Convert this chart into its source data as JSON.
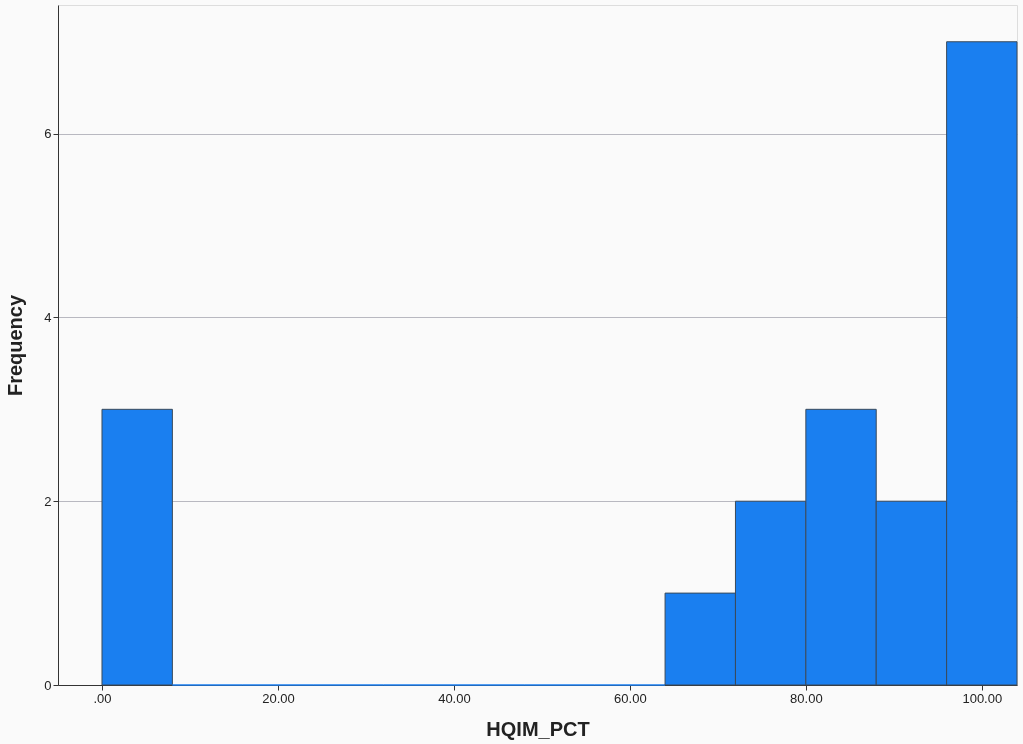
{
  "chart_data": {
    "type": "histogram",
    "xlabel": "HQIM_PCT",
    "ylabel": "Frequency",
    "bins": [
      0,
      8,
      16,
      24,
      32,
      40,
      48,
      56,
      64,
      72,
      80,
      88,
      96,
      104
    ],
    "values": [
      3,
      0,
      0,
      0,
      0,
      0,
      0,
      0,
      1,
      2,
      3,
      2,
      7
    ],
    "color": "#1a7ff0",
    "xlim": [
      -5,
      104
    ],
    "ylim": [
      0,
      7.4
    ],
    "xticks": [
      {
        "value": 0,
        "label": ".00"
      },
      {
        "value": 20,
        "label": "20.00"
      },
      {
        "value": 40,
        "label": "40.00"
      },
      {
        "value": 60,
        "label": "60.00"
      },
      {
        "value": 80,
        "label": "80.00"
      },
      {
        "value": 100,
        "label": "100.00"
      }
    ],
    "yticks": [
      0,
      2,
      4,
      6
    ],
    "grid": "y"
  }
}
